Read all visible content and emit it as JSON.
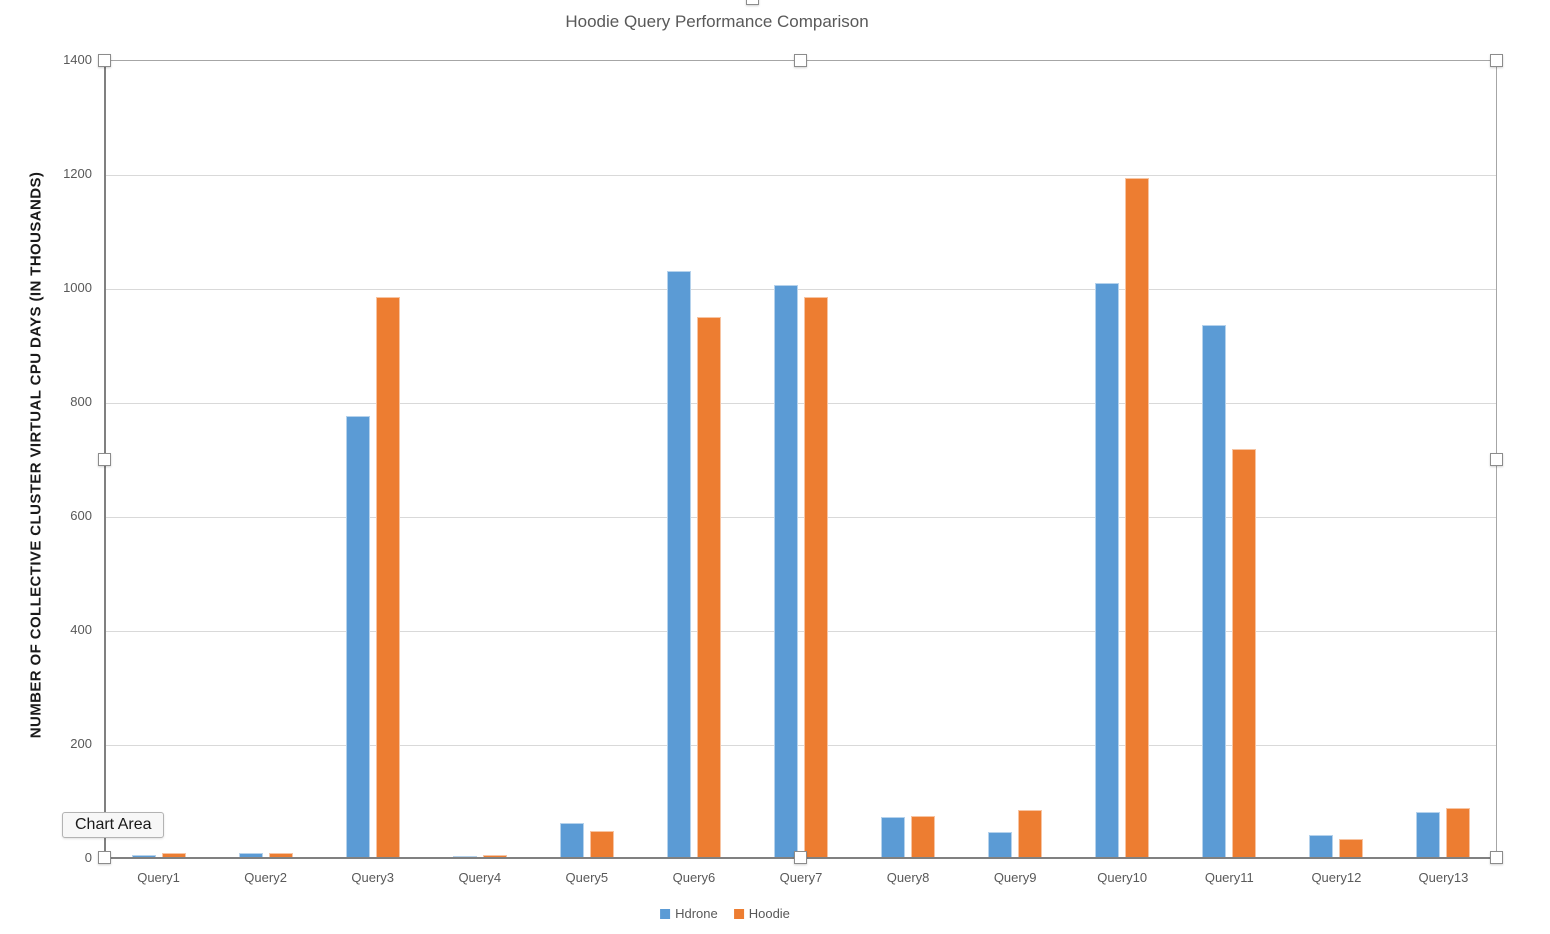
{
  "ui": {
    "tooltip": "Chart Area"
  },
  "colors": {
    "hdrone_blue": "#5B9BD5",
    "hoodie_orange": "#ED7D31",
    "gridline": "#D9D9D9",
    "axis_line": "#808080",
    "selection_border": "#A6A6A6",
    "text_gray": "#595959"
  },
  "chart_data": {
    "type": "bar",
    "title": "Hoodie Query Performance Comparison",
    "xlabel": "",
    "ylabel": "NUMBER OF COLLECTIVE CLUSTER VIRTUAL CPU DAYS (IN THOUSANDS)",
    "categories": [
      "Query1",
      "Query2",
      "Query3",
      "Query4",
      "Query5",
      "Query6",
      "Query7",
      "Query8",
      "Query9",
      "Query10",
      "Query11",
      "Query12",
      "Query13"
    ],
    "series": [
      {
        "name": "Hdrone",
        "color": "#5B9BD5",
        "values": [
          5,
          9,
          775,
          4,
          62,
          1030,
          1005,
          72,
          46,
          1008,
          935,
          40,
          80
        ]
      },
      {
        "name": "Hoodie",
        "color": "#ED7D31",
        "values": [
          9,
          8,
          985,
          5,
          48,
          950,
          985,
          73,
          85,
          1193,
          718,
          33,
          87
        ]
      }
    ],
    "ylim": [
      0,
      1400
    ],
    "yticks": [
      0,
      200,
      400,
      600,
      800,
      1000,
      1200,
      1400
    ],
    "grid": true,
    "legend_position": "bottom"
  }
}
